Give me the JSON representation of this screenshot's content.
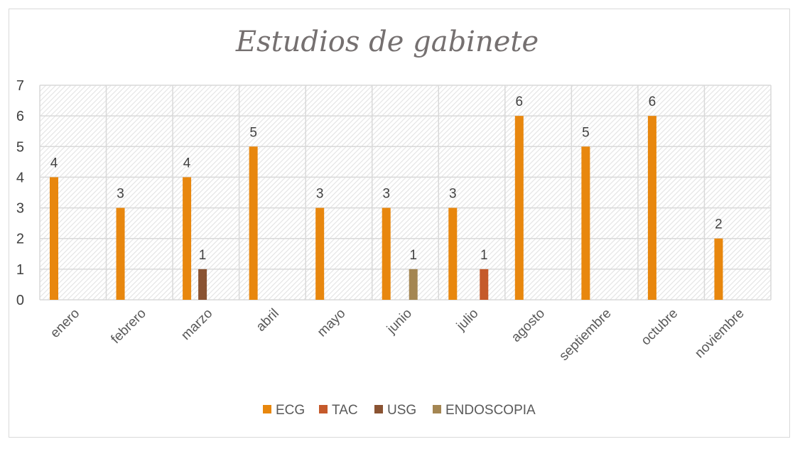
{
  "chart_data": {
    "type": "bar",
    "title": "Estudios de gabinete",
    "xlabel": "",
    "ylabel": "",
    "ylim": [
      0,
      7
    ],
    "yticks": [
      0,
      1,
      2,
      3,
      4,
      5,
      6,
      7
    ],
    "grid": true,
    "legend_position": "bottom",
    "categories": [
      "enero",
      "febrero",
      "marzo",
      "abril",
      "mayo",
      "junio",
      "julio",
      "agosto",
      "septiembre",
      "octubre",
      "noviembre"
    ],
    "series": [
      {
        "name": "ECG",
        "color": "#E8870E",
        "values": [
          4,
          3,
          4,
          5,
          3,
          3,
          3,
          6,
          5,
          6,
          2
        ]
      },
      {
        "name": "TAC",
        "color": "#C55A2B",
        "values": [
          null,
          null,
          null,
          null,
          null,
          null,
          1,
          null,
          null,
          null,
          null
        ]
      },
      {
        "name": "USG",
        "color": "#8A5332",
        "values": [
          null,
          null,
          1,
          null,
          null,
          null,
          null,
          null,
          null,
          null,
          null
        ]
      },
      {
        "name": "ENDOSCOPIA",
        "color": "#A48652",
        "values": [
          null,
          null,
          null,
          null,
          null,
          1,
          null,
          null,
          null,
          null,
          null
        ]
      }
    ]
  }
}
